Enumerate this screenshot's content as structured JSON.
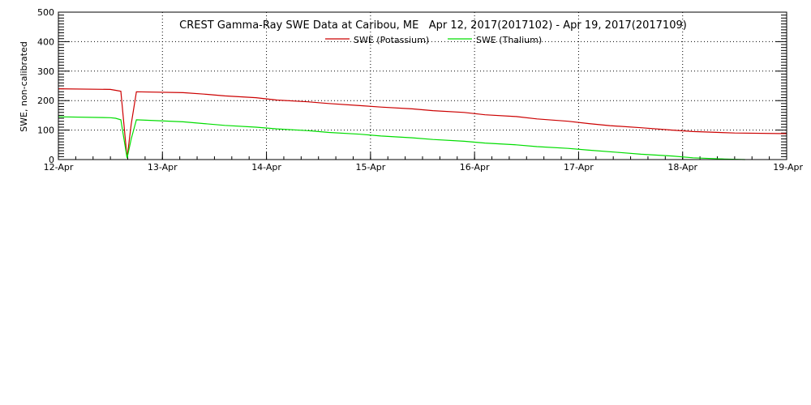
{
  "chart_data": {
    "type": "line",
    "title": "CREST Gamma-Ray SWE Data at Caribou, ME   Apr 12, 2017(2017102) - Apr 19, 2017(2017109)",
    "xlabel": "",
    "ylabel": "SWE, non-calibrated",
    "xlim": [
      0,
      7
    ],
    "ylim": [
      0,
      500
    ],
    "x_tick_labels": [
      "12-Apr",
      "13-Apr",
      "14-Apr",
      "15-Apr",
      "16-Apr",
      "17-Apr",
      "18-Apr",
      "19-Apr"
    ],
    "y_tick_labels": [
      "0",
      "100",
      "200",
      "300",
      "400",
      "500"
    ],
    "grid": true,
    "legend_position": "top-center",
    "series": [
      {
        "name": "SWE (Potassium)",
        "color": "#cc0000",
        "x": [
          0,
          0.5,
          0.55,
          0.6,
          0.66,
          0.7,
          0.75,
          1.2,
          1.4,
          1.6,
          1.9,
          2.1,
          2.4,
          2.6,
          2.9,
          3.1,
          3.4,
          3.6,
          3.9,
          4.1,
          4.4,
          4.6,
          4.9,
          5.1,
          5.3,
          5.6,
          5.9,
          6.1,
          6.5,
          7
        ],
        "y": [
          240,
          238,
          235,
          232,
          5,
          120,
          230,
          227,
          222,
          216,
          210,
          202,
          196,
          190,
          183,
          178,
          172,
          166,
          160,
          152,
          146,
          138,
          130,
          122,
          115,
          108,
          100,
          95,
          90,
          88
        ]
      },
      {
        "name": "SWE (Thalium)",
        "color": "#00dd00",
        "x": [
          0,
          0.5,
          0.55,
          0.6,
          0.66,
          0.7,
          0.75,
          1.2,
          1.4,
          1.6,
          1.9,
          2.1,
          2.4,
          2.6,
          2.9,
          3.1,
          3.4,
          3.6,
          3.9,
          4.1,
          4.4,
          4.6,
          4.9,
          5.1,
          5.4,
          5.6,
          5.9,
          6.1,
          6.4,
          6.6
        ],
        "y": [
          145,
          142,
          140,
          135,
          5,
          70,
          135,
          128,
          122,
          116,
          110,
          104,
          98,
          92,
          86,
          80,
          74,
          68,
          62,
          56,
          50,
          44,
          38,
          32,
          24,
          18,
          12,
          6,
          2,
          0
        ]
      }
    ]
  }
}
